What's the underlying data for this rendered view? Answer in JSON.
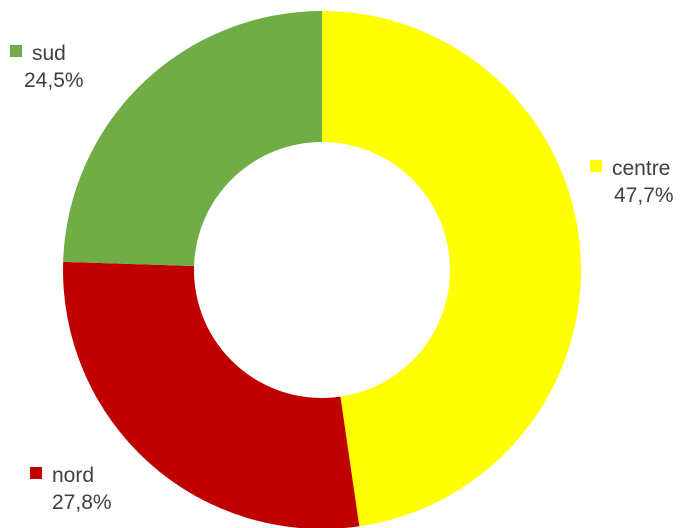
{
  "chart_data": {
    "type": "pie",
    "variant": "donut",
    "start": "top",
    "direction": "clockwise",
    "title": "",
    "slices": [
      {
        "label": "centre",
        "value": 47.7,
        "display": "47,7%",
        "color": "#FFFF00"
      },
      {
        "label": "nord",
        "value": 27.8,
        "display": "27,8%",
        "color": "#C00000"
      },
      {
        "label": "sud",
        "value": 24.5,
        "display": "24,5%",
        "color": "#70AD47"
      }
    ],
    "legend": "labels beside slices"
  }
}
